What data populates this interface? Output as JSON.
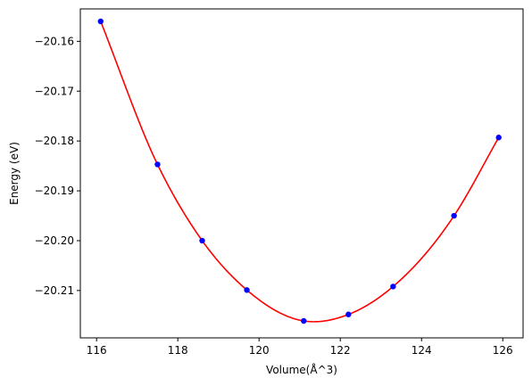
{
  "chart_data": {
    "type": "scatter",
    "title": "",
    "xlabel": "Volume(Å^3)",
    "ylabel": "Energy (eV)",
    "xlim": [
      115.6,
      126.5
    ],
    "ylim": [
      -20.2195,
      -20.1535
    ],
    "xticks": [
      116,
      118,
      120,
      122,
      124,
      126
    ],
    "yticks": [
      -20.16,
      -20.17,
      -20.18,
      -20.19,
      -20.2,
      -20.21
    ],
    "ytick_labels": [
      "−20.16",
      "−20.17",
      "−20.18",
      "−20.19",
      "−20.20",
      "−20.21"
    ],
    "grid": false,
    "legend": "none",
    "series": [
      {
        "kind": "points",
        "color": "#0000ff",
        "x": [
          116.1,
          117.5,
          118.6,
          119.7,
          121.1,
          122.2,
          123.3,
          124.8,
          125.9
        ],
        "y": [
          -20.156,
          -20.1847,
          -20.2,
          -20.2099,
          -20.2161,
          -20.2148,
          -20.2092,
          -20.195,
          -20.1793
        ]
      },
      {
        "kind": "fit-curve",
        "color": "#ff0000",
        "fit": "equation-of-state",
        "x_range": [
          116.1,
          125.9
        ],
        "min_x": 121.4,
        "min_y": -20.2162
      }
    ]
  }
}
